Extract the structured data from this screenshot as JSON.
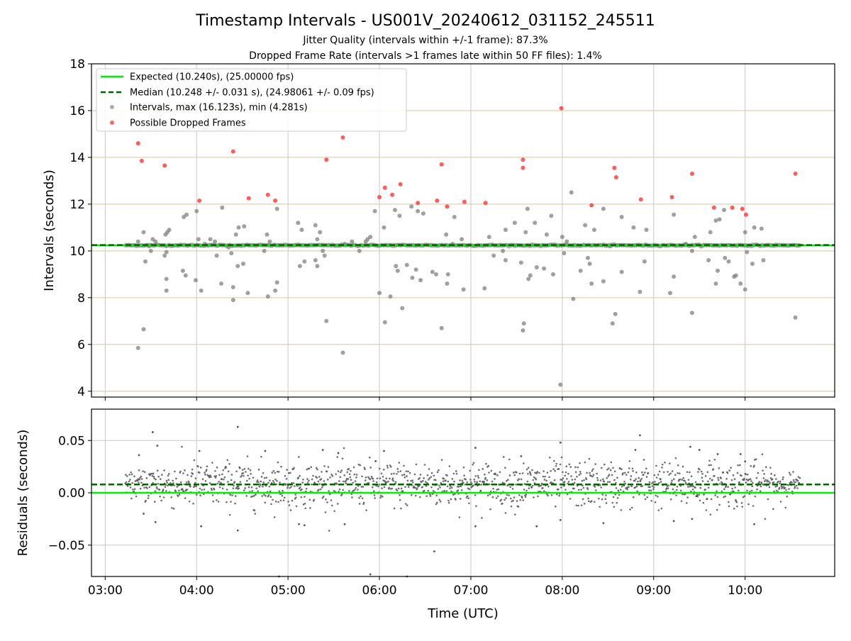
{
  "figure": {
    "title": "Timestamp Intervals - US001V_20240612_031152_245511",
    "subtitle_1": "Jitter Quality (intervals within +/-1 frame): 87.3%",
    "subtitle_2": "Dropped Frame Rate (intervals >1 frames late within 50 FF files): 1.4%"
  },
  "colors": {
    "expected": "#00ee00",
    "median": "#006400",
    "intervals": "#808080",
    "dropped": "#ff3333",
    "residuals": "#555555",
    "y_grid": "#d9c68f",
    "x_grid": "#c8c8c8"
  },
  "chart_data": [
    {
      "type": "scatter",
      "panel": "top",
      "ylabel": "Intervals (seconds)",
      "xlabel": "",
      "x_unit": "hours UTC",
      "xlim": [
        2.85,
        10.98
      ],
      "ylim": [
        3.75,
        18
      ],
      "x_ticks": [
        3,
        4,
        5,
        6,
        7,
        8,
        9,
        10
      ],
      "y_ticks": [
        4,
        6,
        8,
        10,
        12,
        14,
        16,
        18
      ],
      "y_tick_labels": [
        "4",
        "6",
        "8",
        "10",
        "12",
        "14",
        "16",
        "18"
      ],
      "grid": "on",
      "legend_position": "upper-left",
      "legend": [
        "Expected (10.240s), (25.00000 fps)",
        "Median (10.248 +/- 0.031 s), (24.98061 +/- 0.09 fps)",
        "Intervals, max (16.123s), min (4.281s)",
        "Possible Dropped Frames"
      ],
      "expected_line": 10.24,
      "median_line": 10.248,
      "dense_band": {
        "x_start": 3.22,
        "x_end": 10.6,
        "y": 10.24
      },
      "intervals": [
        [
          3.36,
          5.85
        ],
        [
          3.42,
          6.65
        ],
        [
          3.36,
          10.4
        ],
        [
          3.42,
          10.8
        ],
        [
          3.44,
          9.55
        ],
        [
          3.48,
          10.2
        ],
        [
          3.5,
          10.0
        ],
        [
          3.52,
          10.5
        ],
        [
          3.55,
          10.4
        ],
        [
          3.66,
          10.7
        ],
        [
          3.68,
          10.8
        ],
        [
          3.65,
          9.8
        ],
        [
          3.67,
          9.95
        ],
        [
          3.7,
          10.9
        ],
        [
          3.67,
          8.8
        ],
        [
          3.67,
          8.3
        ],
        [
          3.85,
          9.15
        ],
        [
          3.88,
          8.95
        ],
        [
          3.86,
          11.45
        ],
        [
          3.89,
          11.55
        ],
        [
          4.0,
          11.7
        ],
        [
          4.02,
          10.5
        ],
        [
          4.05,
          8.3
        ],
        [
          3.99,
          8.75
        ],
        [
          4.09,
          10.3
        ],
        [
          4.15,
          10.5
        ],
        [
          4.2,
          10.4
        ],
        [
          4.22,
          9.8
        ],
        [
          4.27,
          8.6
        ],
        [
          4.28,
          11.85
        ],
        [
          4.35,
          10.15
        ],
        [
          4.38,
          9.9
        ],
        [
          4.4,
          8.45
        ],
        [
          4.4,
          7.9
        ],
        [
          4.43,
          10.7
        ],
        [
          4.45,
          9.35
        ],
        [
          4.46,
          11.0
        ],
        [
          4.51,
          9.45
        ],
        [
          4.52,
          11.05
        ],
        [
          4.56,
          8.2
        ],
        [
          4.74,
          10.0
        ],
        [
          4.77,
          10.7
        ],
        [
          4.8,
          10.4
        ],
        [
          4.78,
          8.05
        ],
        [
          4.86,
          8.3
        ],
        [
          4.88,
          8.65
        ],
        [
          4.88,
          11.8
        ],
        [
          5.11,
          11.2
        ],
        [
          5.15,
          10.9
        ],
        [
          5.18,
          9.55
        ],
        [
          5.13,
          9.35
        ],
        [
          5.3,
          11.1
        ],
        [
          5.35,
          10.8
        ],
        [
          5.32,
          10.5
        ],
        [
          5.3,
          9.6
        ],
        [
          5.32,
          9.35
        ],
        [
          5.4,
          9.8
        ],
        [
          5.38,
          10.0
        ],
        [
          5.42,
          7.0
        ],
        [
          5.6,
          5.65
        ],
        [
          5.62,
          10.3
        ],
        [
          5.7,
          10.4
        ],
        [
          5.78,
          10.0
        ],
        [
          5.85,
          10.4
        ],
        [
          5.87,
          10.5
        ],
        [
          5.9,
          10.6
        ],
        [
          5.95,
          11.7
        ],
        [
          6.0,
          8.2
        ],
        [
          6.05,
          11.0
        ],
        [
          6.06,
          6.95
        ],
        [
          6.12,
          8.05
        ],
        [
          6.18,
          9.35
        ],
        [
          6.17,
          11.75
        ],
        [
          6.2,
          9.15
        ],
        [
          6.22,
          11.5
        ],
        [
          6.25,
          7.55
        ],
        [
          6.3,
          9.4
        ],
        [
          6.35,
          11.9
        ],
        [
          6.36,
          8.85
        ],
        [
          6.4,
          9.2
        ],
        [
          6.42,
          11.7
        ],
        [
          6.45,
          8.75
        ],
        [
          6.48,
          11.6
        ],
        [
          6.58,
          9.1
        ],
        [
          6.62,
          9.0
        ],
        [
          6.68,
          6.7
        ],
        [
          6.73,
          10.7
        ],
        [
          6.74,
          8.6
        ],
        [
          6.75,
          9.0
        ],
        [
          6.8,
          10.3
        ],
        [
          6.82,
          11.45
        ],
        [
          6.9,
          10.5
        ],
        [
          6.92,
          8.35
        ],
        [
          7.15,
          8.4
        ],
        [
          7.2,
          10.6
        ],
        [
          7.25,
          9.8
        ],
        [
          7.35,
          10.0
        ],
        [
          7.38,
          10.9
        ],
        [
          7.38,
          9.6
        ],
        [
          7.48,
          11.2
        ],
        [
          7.55,
          9.5
        ],
        [
          7.57,
          6.6
        ],
        [
          7.58,
          6.9
        ],
        [
          7.6,
          10.8
        ],
        [
          7.62,
          11.8
        ],
        [
          7.63,
          8.8
        ],
        [
          7.65,
          8.95
        ],
        [
          7.7,
          11.2
        ],
        [
          7.72,
          9.3
        ],
        [
          7.8,
          9.25
        ],
        [
          7.83,
          10.7
        ],
        [
          7.88,
          11.5
        ],
        [
          7.9,
          9.0
        ],
        [
          7.98,
          4.28
        ],
        [
          8.0,
          10.6
        ],
        [
          8.02,
          9.9
        ],
        [
          8.05,
          10.4
        ],
        [
          8.1,
          12.5
        ],
        [
          8.12,
          7.95
        ],
        [
          8.2,
          9.15
        ],
        [
          8.25,
          11.1
        ],
        [
          8.28,
          9.7
        ],
        [
          8.3,
          9.45
        ],
        [
          8.32,
          8.6
        ],
        [
          8.35,
          10.9
        ],
        [
          8.45,
          8.7
        ],
        [
          8.45,
          11.8
        ],
        [
          8.52,
          10.2
        ],
        [
          8.55,
          6.9
        ],
        [
          8.58,
          7.3
        ],
        [
          8.65,
          9.1
        ],
        [
          8.65,
          11.45
        ],
        [
          8.78,
          11.0
        ],
        [
          8.85,
          8.25
        ],
        [
          8.9,
          9.55
        ],
        [
          8.92,
          10.9
        ],
        [
          9.18,
          8.2
        ],
        [
          9.22,
          8.9
        ],
        [
          9.22,
          11.55
        ],
        [
          9.35,
          10.3
        ],
        [
          9.42,
          7.35
        ],
        [
          9.42,
          10.0
        ],
        [
          9.45,
          10.6
        ],
        [
          9.6,
          9.6
        ],
        [
          9.62,
          10.8
        ],
        [
          9.68,
          8.6
        ],
        [
          9.7,
          9.15
        ],
        [
          9.68,
          11.3
        ],
        [
          9.72,
          11.35
        ],
        [
          9.78,
          9.7
        ],
        [
          9.77,
          11.75
        ],
        [
          9.82,
          9.55
        ],
        [
          9.88,
          8.9
        ],
        [
          9.9,
          8.95
        ],
        [
          9.95,
          8.6
        ],
        [
          10.0,
          8.35
        ],
        [
          10.0,
          10.8
        ],
        [
          10.02,
          9.95
        ],
        [
          10.08,
          9.45
        ],
        [
          10.1,
          11.0
        ],
        [
          10.18,
          10.95
        ],
        [
          10.2,
          9.6
        ],
        [
          10.55,
          7.15
        ]
      ],
      "dropped_frames": [
        [
          3.36,
          14.6
        ],
        [
          3.4,
          13.85
        ],
        [
          3.65,
          13.65
        ],
        [
          4.03,
          12.15
        ],
        [
          4.4,
          14.25
        ],
        [
          4.57,
          12.25
        ],
        [
          4.78,
          12.4
        ],
        [
          4.86,
          12.15
        ],
        [
          5.42,
          13.9
        ],
        [
          5.6,
          14.85
        ],
        [
          6.0,
          12.3
        ],
        [
          6.06,
          12.7
        ],
        [
          6.14,
          12.4
        ],
        [
          6.23,
          12.85
        ],
        [
          6.42,
          12.05
        ],
        [
          6.63,
          12.15
        ],
        [
          6.68,
          13.7
        ],
        [
          6.74,
          11.9
        ],
        [
          6.93,
          12.1
        ],
        [
          7.16,
          12.05
        ],
        [
          7.57,
          13.9
        ],
        [
          7.57,
          13.55
        ],
        [
          7.99,
          16.1
        ],
        [
          8.32,
          11.95
        ],
        [
          8.57,
          13.55
        ],
        [
          8.59,
          13.15
        ],
        [
          8.86,
          12.2
        ],
        [
          9.2,
          12.3
        ],
        [
          9.42,
          13.3
        ],
        [
          9.66,
          11.85
        ],
        [
          9.86,
          11.85
        ],
        [
          9.97,
          11.8
        ],
        [
          10.01,
          11.55
        ],
        [
          10.55,
          13.3
        ]
      ]
    },
    {
      "type": "scatter",
      "panel": "bottom",
      "ylabel": "Residuals (seconds)",
      "xlabel": "Time (UTC)",
      "x_unit": "hours UTC",
      "xlim": [
        2.85,
        10.98
      ],
      "ylim": [
        -0.08,
        0.08
      ],
      "x_ticks": [
        3,
        4,
        5,
        6,
        7,
        8,
        9,
        10
      ],
      "x_tick_labels": [
        "03:00",
        "04:00",
        "05:00",
        "06:00",
        "07:00",
        "08:00",
        "09:00",
        "10:00"
      ],
      "y_ticks": [
        -0.05,
        0.0,
        0.05
      ],
      "y_tick_labels": [
        "−0.05",
        "0.00",
        "0.05"
      ],
      "grid": "on",
      "expected_line": 0.0,
      "median_line": 0.008,
      "residual_band": {
        "x_start": 3.22,
        "x_end": 10.6,
        "center": 0.008,
        "spread_sd": 0.011
      },
      "outliers": [
        [
          3.52,
          0.058
        ],
        [
          3.57,
          0.045
        ],
        [
          3.55,
          -0.028
        ],
        [
          3.37,
          0.036
        ],
        [
          3.42,
          -0.02
        ],
        [
          4.03,
          0.04
        ],
        [
          4.05,
          -0.032
        ],
        [
          4.45,
          0.063
        ],
        [
          4.45,
          -0.036
        ],
        [
          4.75,
          0.04
        ],
        [
          4.9,
          -0.08
        ],
        [
          5.12,
          -0.03
        ],
        [
          5.18,
          -0.031
        ],
        [
          5.38,
          0.041
        ],
        [
          5.55,
          0.038
        ],
        [
          5.62,
          -0.03
        ],
        [
          5.9,
          -0.078
        ],
        [
          6.05,
          0.04
        ],
        [
          6.3,
          -0.08
        ],
        [
          6.6,
          -0.056
        ],
        [
          7.05,
          0.043
        ],
        [
          7.05,
          -0.032
        ],
        [
          7.55,
          0.035
        ],
        [
          7.72,
          -0.032
        ],
        [
          7.98,
          0.048
        ],
        [
          7.98,
          -0.026
        ],
        [
          8.45,
          -0.029
        ],
        [
          8.85,
          0.055
        ],
        [
          8.8,
          0.041
        ],
        [
          9.4,
          0.044
        ],
        [
          9.5,
          0.041
        ],
        [
          9.42,
          -0.025
        ],
        [
          9.22,
          -0.027
        ],
        [
          9.7,
          0.037
        ],
        [
          9.95,
          0.037
        ],
        [
          10.1,
          -0.03
        ],
        [
          10.0,
          0.03
        ]
      ]
    }
  ]
}
